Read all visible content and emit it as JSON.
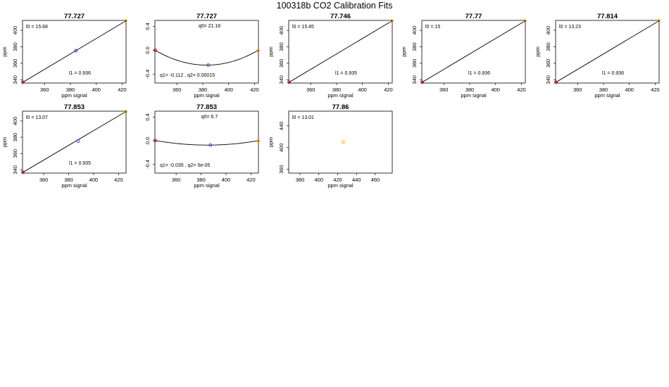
{
  "page": {
    "title": "100318b   CO2 Calibration Fits"
  },
  "chart_data": [
    {
      "type": "line",
      "title": "77.727",
      "xlabel": "ppm signal",
      "ylabel": "ppm",
      "xlim": [
        343,
        423
      ],
      "ylim": [
        336,
        412
      ],
      "xticks": [
        360,
        380,
        400,
        420
      ],
      "yticks": [
        340,
        360,
        380,
        400
      ],
      "annotations": [
        {
          "text": "l0 =  15.68",
          "pos": "top-left"
        },
        {
          "text": "l1 =  0.936",
          "pos": "bottom-center"
        }
      ],
      "series": [
        {
          "kind": "line",
          "x": [
            343,
            423
          ],
          "y": [
            336.7,
            411.6
          ]
        }
      ],
      "points": [
        {
          "x": 343.3,
          "y": 337.0,
          "color": "#dd0000"
        },
        {
          "x": 384.2,
          "y": 375.3,
          "color": "#3333cc"
        },
        {
          "x": 422.7,
          "y": 411.3,
          "color": "#ffa500"
        }
      ]
    },
    {
      "type": "line",
      "title": "77.727",
      "xlabel": "ppm signal",
      "ylabel": "",
      "xlim": [
        343,
        423
      ],
      "ylim": [
        -0.55,
        0.5
      ],
      "xticks": [
        360,
        380,
        400,
        420
      ],
      "yticks": [
        -0.4,
        0.0,
        0.4
      ],
      "annotations": [
        {
          "text": "q0= 21.18",
          "pos": "top-center"
        },
        {
          "text": "q1= -0.112 , q2= 0.00015",
          "pos": "bottom-left"
        }
      ],
      "series": [
        {
          "kind": "quadratic",
          "vertex_x": 383,
          "vertex_y": -0.25,
          "k": 0.000157
        }
      ],
      "points": [
        {
          "x": 343.3,
          "y": 0.0,
          "color": "#dd0000"
        },
        {
          "x": 384.2,
          "y": -0.25,
          "color": "#3333cc"
        },
        {
          "x": 422.7,
          "y": -0.01,
          "color": "#ffa500"
        }
      ]
    },
    {
      "type": "line",
      "title": "77.746",
      "xlabel": "ppm signal",
      "ylabel": "ppm",
      "xlim": [
        343,
        423
      ],
      "ylim": [
        336,
        412
      ],
      "xticks": [
        360,
        380,
        400,
        420
      ],
      "yticks": [
        340,
        360,
        380,
        400
      ],
      "annotations": [
        {
          "text": "l0 =  15.45",
          "pos": "top-left"
        },
        {
          "text": "l1 =  0.935",
          "pos": "bottom-center"
        }
      ],
      "series": [
        {
          "kind": "line",
          "x": [
            343,
            423
          ],
          "y": [
            336.7,
            411.6
          ]
        }
      ],
      "points": [
        {
          "x": 343.3,
          "y": 337.0,
          "color": "#dd0000"
        },
        {
          "x": 422.7,
          "y": 411.3,
          "color": "#ffa500"
        }
      ]
    },
    {
      "type": "line",
      "title": "77.77",
      "xlabel": "ppm signal",
      "ylabel": "ppm",
      "xlim": [
        343,
        423
      ],
      "ylim": [
        336,
        412
      ],
      "xticks": [
        360,
        380,
        400,
        420
      ],
      "yticks": [
        340,
        360,
        380,
        400
      ],
      "annotations": [
        {
          "text": "l0 =  15",
          "pos": "top-left"
        },
        {
          "text": "l1 =  0.936",
          "pos": "bottom-center"
        }
      ],
      "series": [
        {
          "kind": "line",
          "x": [
            343,
            423
          ],
          "y": [
            336.7,
            411.6
          ]
        }
      ],
      "points": [
        {
          "x": 343.3,
          "y": 337.0,
          "color": "#dd0000"
        },
        {
          "x": 422.7,
          "y": 411.3,
          "color": "#ffa500"
        }
      ]
    },
    {
      "type": "line",
      "title": "77.814",
      "xlabel": "ppm signal",
      "ylabel": "ppm",
      "xlim": [
        343,
        423
      ],
      "ylim": [
        336,
        412
      ],
      "xticks": [
        360,
        380,
        400,
        420
      ],
      "yticks": [
        340,
        360,
        380,
        400
      ],
      "annotations": [
        {
          "text": "l0 =  13.23",
          "pos": "top-left"
        },
        {
          "text": "l1 =  0.936",
          "pos": "bottom-center"
        }
      ],
      "series": [
        {
          "kind": "line",
          "x": [
            343,
            423
          ],
          "y": [
            336.7,
            411.6
          ]
        }
      ],
      "points": [
        {
          "x": 343.3,
          "y": 337.0,
          "color": "#dd0000"
        },
        {
          "x": 422.7,
          "y": 411.3,
          "color": "#ffa500"
        }
      ]
    },
    {
      "type": "line",
      "title": "77.853",
      "xlabel": "ppm signal",
      "ylabel": "ppm",
      "xlim": [
        343,
        426
      ],
      "ylim": [
        336,
        412
      ],
      "xticks": [
        360,
        380,
        400,
        420
      ],
      "yticks": [
        340,
        360,
        380,
        400
      ],
      "annotations": [
        {
          "text": "l0 =  13.07",
          "pos": "top-left"
        },
        {
          "text": "l1 =  0.935",
          "pos": "bottom-center"
        }
      ],
      "series": [
        {
          "kind": "line",
          "x": [
            343,
            426
          ],
          "y": [
            336.7,
            411.6
          ]
        }
      ],
      "points": [
        {
          "x": 343.3,
          "y": 337.0,
          "color": "#dd0000"
        },
        {
          "x": 387.5,
          "y": 375.3,
          "color": "#3333cc"
        },
        {
          "x": 425.8,
          "y": 411.3,
          "color": "#ffa500"
        }
      ]
    },
    {
      "type": "line",
      "title": "77.853",
      "xlabel": "ppm signal",
      "ylabel": "",
      "xlim": [
        343,
        426
      ],
      "ylim": [
        -0.55,
        0.5
      ],
      "xticks": [
        360,
        380,
        400,
        420
      ],
      "yticks": [
        -0.4,
        0.0,
        0.4
      ],
      "annotations": [
        {
          "text": "q0= 6.7",
          "pos": "top-center"
        },
        {
          "text": "q1= -0.035 , q2= 5e-05",
          "pos": "bottom-left"
        }
      ],
      "series": [
        {
          "kind": "quadratic",
          "vertex_x": 385,
          "vertex_y": -0.075,
          "k": 4.5e-05
        }
      ],
      "points": [
        {
          "x": 343.3,
          "y": 0.0,
          "color": "#dd0000"
        },
        {
          "x": 387.5,
          "y": -0.075,
          "color": "#3333cc"
        },
        {
          "x": 425.8,
          "y": -0.01,
          "color": "#ffa500"
        }
      ]
    },
    {
      "type": "scatter",
      "title": "77.86",
      "xlabel": "ppm signal",
      "ylabel": "ppm",
      "xlim": [
        368,
        478
      ],
      "ylim": [
        353,
        467
      ],
      "xticks": [
        380,
        400,
        420,
        440,
        460
      ],
      "yticks": [
        360,
        400,
        440
      ],
      "annotations": [
        {
          "text": "l0 =  13.01",
          "pos": "top-left"
        }
      ],
      "series": [],
      "points": [
        {
          "x": 425.8,
          "y": 410.0,
          "color": "#ffa500"
        }
      ]
    }
  ]
}
